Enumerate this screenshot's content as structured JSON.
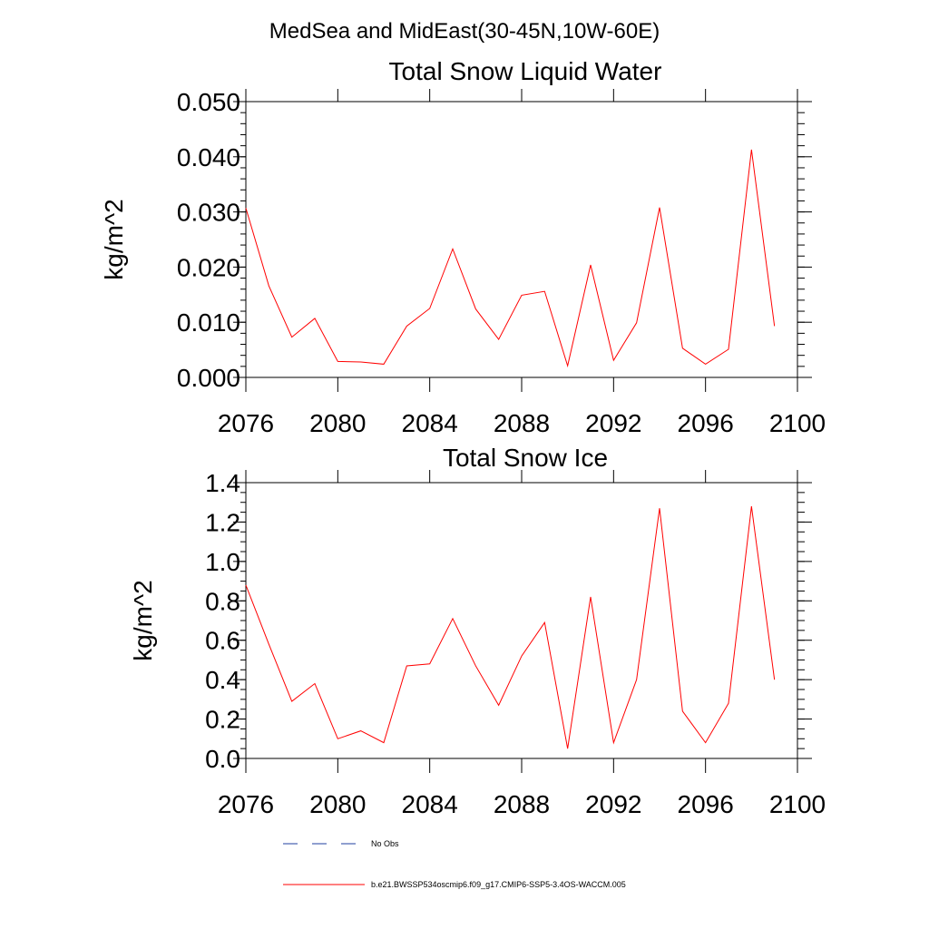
{
  "figure_title": "MedSea and MidEast(30-45N,10W-60E)",
  "legend": {
    "entries": [
      {
        "label": "No Obs",
        "color": "#1f3f9f",
        "style": "dashed"
      },
      {
        "label": "b.e21.BWSSP534oscmip6.f09_g17.CMIP6-SSP5-3.4OS-WACCM.005",
        "color": "#ff0000",
        "style": "solid"
      }
    ]
  },
  "chart_data": [
    {
      "type": "line",
      "title": "Total Snow Liquid Water",
      "xlabel": "",
      "ylabel": "kg/m^2",
      "xlim": [
        2076,
        2100
      ],
      "ylim": [
        0,
        0.05
      ],
      "x_ticks": [
        2076,
        2080,
        2084,
        2088,
        2092,
        2096,
        2100
      ],
      "x_tick_labels": [
        "2076",
        "2080",
        "2084",
        "2088",
        "2092",
        "2096",
        "2100"
      ],
      "y_ticks": [
        0,
        0.01,
        0.02,
        0.03,
        0.04,
        0.05
      ],
      "y_tick_labels": [
        "0.000",
        "0.010",
        "0.020",
        "0.030",
        "0.040",
        "0.050"
      ],
      "y_minor_step": 0.002,
      "x_minor_step": 1,
      "x": [
        2076,
        2077,
        2078,
        2079,
        2080,
        2081,
        2082,
        2083,
        2084,
        2085,
        2086,
        2087,
        2088,
        2089,
        2090,
        2091,
        2092,
        2093,
        2094,
        2095,
        2096,
        2097,
        2098,
        2099
      ],
      "series": [
        {
          "name": "b.e21.BWSSP534oscmip6.f09_g17.CMIP6-SSP5-3.4OS-WACCM.005",
          "color": "#ff0000",
          "values": [
            0.0307,
            0.0166,
            0.0073,
            0.0107,
            0.0029,
            0.0028,
            0.0024,
            0.0093,
            0.0125,
            0.0233,
            0.0124,
            0.0069,
            0.0149,
            0.0156,
            0.0021,
            0.0204,
            0.0031,
            0.0099,
            0.0308,
            0.0053,
            0.0024,
            0.0051,
            0.0413,
            0.0093
          ]
        }
      ]
    },
    {
      "type": "line",
      "title": "Total Snow Ice",
      "xlabel": "",
      "ylabel": "kg/m^2",
      "xlim": [
        2076,
        2100
      ],
      "ylim": [
        0,
        1.4
      ],
      "x_ticks": [
        2076,
        2080,
        2084,
        2088,
        2092,
        2096,
        2100
      ],
      "x_tick_labels": [
        "2076",
        "2080",
        "2084",
        "2088",
        "2092",
        "2096",
        "2100"
      ],
      "y_ticks": [
        0,
        0.2,
        0.4,
        0.6,
        0.8,
        1.0,
        1.2,
        1.4
      ],
      "y_tick_labels": [
        "0.0",
        "0.2",
        "0.4",
        "0.6",
        "0.8",
        "1.0",
        "1.2",
        "1.4"
      ],
      "y_minor_step": 0.05,
      "x_minor_step": 1,
      "x": [
        2076,
        2077,
        2078,
        2079,
        2080,
        2081,
        2082,
        2083,
        2084,
        2085,
        2086,
        2087,
        2088,
        2089,
        2090,
        2091,
        2092,
        2093,
        2094,
        2095,
        2096,
        2097,
        2098,
        2099
      ],
      "series": [
        {
          "name": "b.e21.BWSSP534oscmip6.f09_g17.CMIP6-SSP5-3.4OS-WACCM.005",
          "color": "#ff0000",
          "values": [
            0.88,
            0.58,
            0.29,
            0.38,
            0.1,
            0.14,
            0.08,
            0.47,
            0.48,
            0.71,
            0.47,
            0.27,
            0.52,
            0.69,
            0.05,
            0.82,
            0.08,
            0.4,
            1.27,
            0.24,
            0.08,
            0.28,
            1.28,
            0.4
          ]
        }
      ]
    }
  ]
}
